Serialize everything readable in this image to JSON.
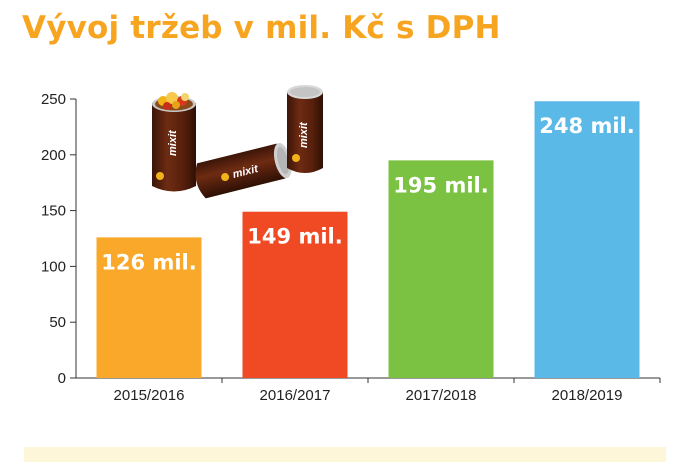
{
  "title": "Vývoj tržeb v mil. Kč s DPH",
  "brand_text": "mixit",
  "chart_data": {
    "type": "bar",
    "title": "Vývoj tržeb v mil. Kč s DPH",
    "categories": [
      "2015/2016",
      "2016/2017",
      "2017/2018",
      "2018/2019"
    ],
    "values": [
      126,
      149,
      195,
      248
    ],
    "data_labels": [
      "126 mil.",
      "149 mil.",
      "195 mil.",
      "248 mil."
    ],
    "colors": [
      "#f9a829",
      "#ef4a24",
      "#7bc142",
      "#5bb9e8"
    ],
    "yticks": [
      0,
      50,
      100,
      150,
      200,
      250
    ],
    "ylim": [
      0,
      250
    ],
    "xlabel": "",
    "ylabel": "",
    "grid": false,
    "legend": "none"
  }
}
